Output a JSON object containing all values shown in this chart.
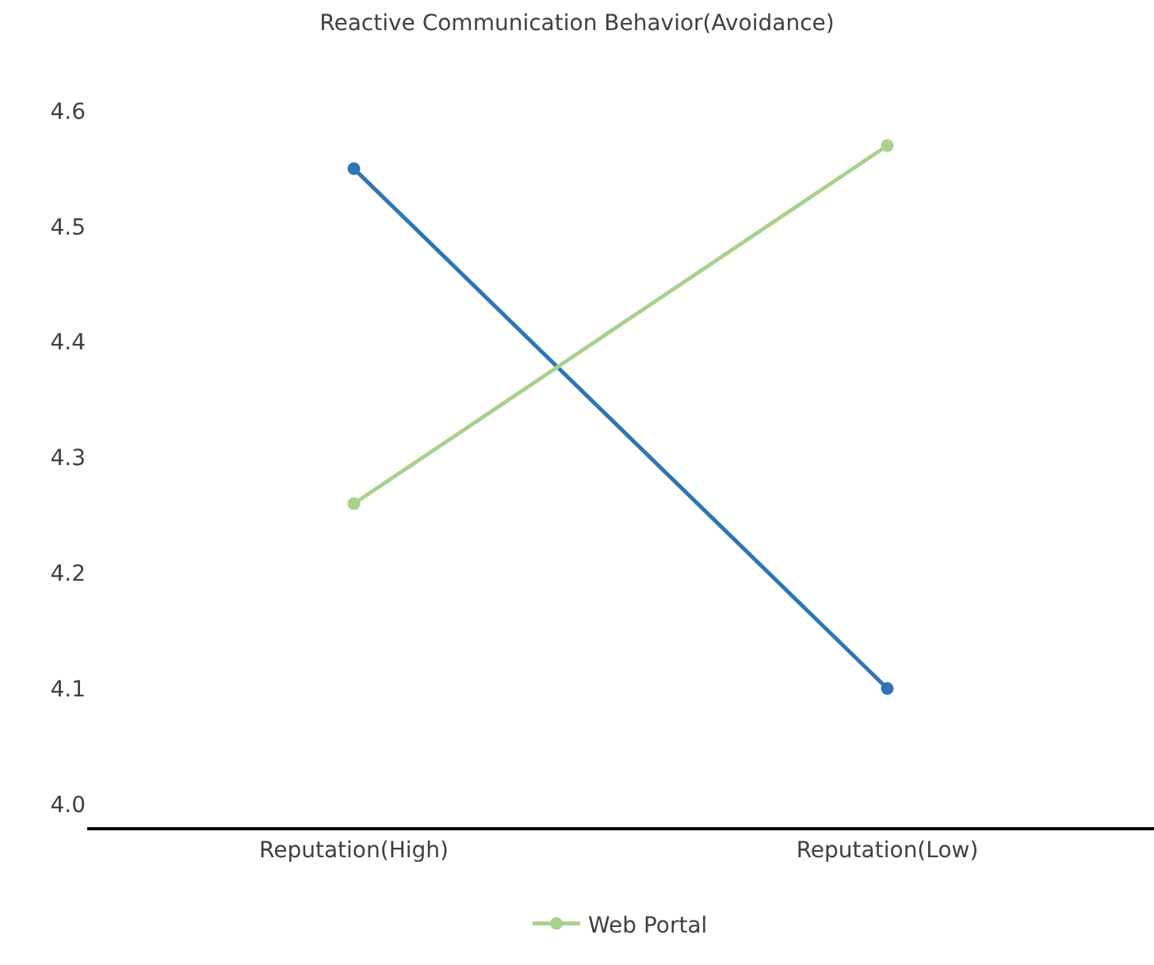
{
  "chart_data": {
    "type": "line",
    "title": "Reactive Communication Behavior(Avoidance)",
    "categories": [
      "Reputation(High)",
      "Reputation(Low)"
    ],
    "series": [
      {
        "color": "#2e75b6",
        "values": [
          4.55,
          4.1
        ]
      },
      {
        "name": "Web Portal",
        "color": "#a9d18e",
        "values": [
          4.26,
          4.57
        ]
      }
    ],
    "ylim": [
      3.98,
      4.6
    ],
    "yticks": [
      {
        "value": 4.0,
        "label": "4.0"
      },
      {
        "value": 4.1,
        "label": "4.1"
      },
      {
        "value": 4.2,
        "label": "4.2"
      },
      {
        "value": 4.3,
        "label": "4.3"
      },
      {
        "value": 4.4,
        "label": "4.4"
      },
      {
        "value": 4.5,
        "label": "4.5"
      },
      {
        "value": 4.6,
        "label": "4.6"
      }
    ],
    "grid": false,
    "legend": "bottom",
    "marker": "circle",
    "line_style": "solid"
  }
}
